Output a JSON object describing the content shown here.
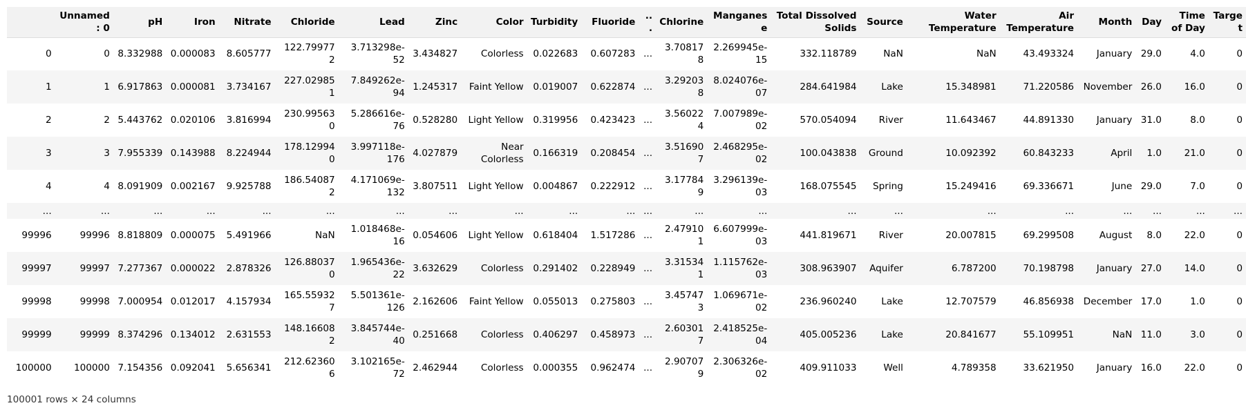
{
  "table": {
    "columns": [
      "",
      "Unnamed: 0",
      "pH",
      "Iron",
      "Nitrate",
      "Chloride",
      "Lead",
      "Zinc",
      "Color",
      "Turbidity",
      "Fluoride",
      "...",
      "Chlorine",
      "Manganese",
      "Total Dissolved Solids",
      "Source",
      "Water Temperature",
      "Air Temperature",
      "Month",
      "Day",
      "Time of Day",
      "Target"
    ],
    "rows": [
      [
        "0",
        "0",
        "8.332988",
        "0.000083",
        "8.605777",
        "122.799772",
        "3.713298e-52",
        "3.434827",
        "Colorless",
        "0.022683",
        "0.607283",
        "...",
        "3.708178",
        "2.269945e-15",
        "332.118789",
        "NaN",
        "NaN",
        "43.493324",
        "January",
        "29.0",
        "4.0",
        "0"
      ],
      [
        "1",
        "1",
        "6.917863",
        "0.000081",
        "3.734167",
        "227.029851",
        "7.849262e-94",
        "1.245317",
        "Faint Yellow",
        "0.019007",
        "0.622874",
        "...",
        "3.292038",
        "8.024076e-07",
        "284.641984",
        "Lake",
        "15.348981",
        "71.220586",
        "November",
        "26.0",
        "16.0",
        "0"
      ],
      [
        "2",
        "2",
        "5.443762",
        "0.020106",
        "3.816994",
        "230.995630",
        "5.286616e-76",
        "0.528280",
        "Light Yellow",
        "0.319956",
        "0.423423",
        "...",
        "3.560224",
        "7.007989e-02",
        "570.054094",
        "River",
        "11.643467",
        "44.891330",
        "January",
        "31.0",
        "8.0",
        "0"
      ],
      [
        "3",
        "3",
        "7.955339",
        "0.143988",
        "8.224944",
        "178.129940",
        "3.997118e-176",
        "4.027879",
        "Near Colorless",
        "0.166319",
        "0.208454",
        "...",
        "3.516907",
        "2.468295e-02",
        "100.043838",
        "Ground",
        "10.092392",
        "60.843233",
        "April",
        "1.0",
        "21.0",
        "0"
      ],
      [
        "4",
        "4",
        "8.091909",
        "0.002167",
        "9.925788",
        "186.540872",
        "4.171069e-132",
        "3.807511",
        "Light Yellow",
        "0.004867",
        "0.222912",
        "...",
        "3.177849",
        "3.296139e-03",
        "168.075545",
        "Spring",
        "15.249416",
        "69.336671",
        "June",
        "29.0",
        "7.0",
        "0"
      ],
      [
        "...",
        "...",
        "...",
        "...",
        "...",
        "...",
        "...",
        "...",
        "...",
        "...",
        "...",
        "...",
        "...",
        "...",
        "...",
        "...",
        "...",
        "...",
        "...",
        "...",
        "...",
        "..."
      ],
      [
        "99996",
        "99996",
        "8.818809",
        "0.000075",
        "5.491966",
        "NaN",
        "1.018468e-16",
        "0.054606",
        "Light Yellow",
        "0.618404",
        "1.517286",
        "...",
        "2.479101",
        "6.607999e-03",
        "441.819671",
        "River",
        "20.007815",
        "69.299508",
        "August",
        "8.0",
        "22.0",
        "0"
      ],
      [
        "99997",
        "99997",
        "7.277367",
        "0.000022",
        "2.878326",
        "126.880370",
        "1.965436e-22",
        "3.632629",
        "Colorless",
        "0.291402",
        "0.228949",
        "...",
        "3.315341",
        "1.115762e-03",
        "308.963907",
        "Aquifer",
        "6.787200",
        "70.198798",
        "January",
        "27.0",
        "14.0",
        "0"
      ],
      [
        "99998",
        "99998",
        "7.000954",
        "0.012017",
        "4.157934",
        "165.559327",
        "5.501361e-126",
        "2.162606",
        "Faint Yellow",
        "0.055013",
        "0.275803",
        "...",
        "3.457473",
        "1.069671e-02",
        "236.960240",
        "Lake",
        "12.707579",
        "46.856938",
        "December",
        "17.0",
        "1.0",
        "0"
      ],
      [
        "99999",
        "99999",
        "8.374296",
        "0.134012",
        "2.631553",
        "148.166082",
        "3.845744e-40",
        "0.251668",
        "Colorless",
        "0.406297",
        "0.458973",
        "...",
        "2.603017",
        "2.418525e-04",
        "405.005236",
        "Lake",
        "20.841677",
        "55.109951",
        "NaN",
        "11.0",
        "3.0",
        "0"
      ],
      [
        "100000",
        "100000",
        "7.154356",
        "0.092041",
        "5.656341",
        "212.623606",
        "3.102165e-72",
        "2.462944",
        "Colorless",
        "0.000355",
        "0.962474",
        "...",
        "2.907079",
        "2.306326e-02",
        "409.911033",
        "Well",
        "4.789358",
        "33.621950",
        "January",
        "16.0",
        "22.0",
        "0"
      ]
    ]
  },
  "footer": "100001 rows × 24 columns"
}
